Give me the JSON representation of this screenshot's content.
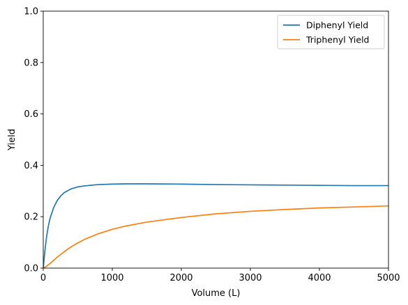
{
  "chart_data": {
    "type": "line",
    "title": "",
    "xlabel": "Volume (L)",
    "ylabel": "Yield",
    "xlim": [
      0,
      5000
    ],
    "ylim": [
      0,
      1.0
    ],
    "xticks": [
      0,
      1000,
      2000,
      3000,
      4000,
      5000
    ],
    "yticks": [
      0.0,
      0.2,
      0.4,
      0.6,
      0.8,
      1.0
    ],
    "xtick_labels": [
      "0",
      "1000",
      "2000",
      "3000",
      "4000",
      "5000"
    ],
    "ytick_labels": [
      "0.0",
      "0.2",
      "0.4",
      "0.6",
      "0.8",
      "1.0"
    ],
    "grid": false,
    "legend": "top-right",
    "series": [
      {
        "name": "Diphenyl Yield",
        "color": "#1f77b4",
        "x": [
          0,
          25,
          50,
          75,
          100,
          150,
          200,
          250,
          300,
          400,
          500,
          600,
          800,
          1000,
          1200,
          1500,
          2000,
          2500,
          3000,
          3500,
          4000,
          4500,
          5000
        ],
        "y": [
          0.0,
          0.07,
          0.125,
          0.165,
          0.195,
          0.235,
          0.262,
          0.28,
          0.293,
          0.308,
          0.316,
          0.32,
          0.325,
          0.327,
          0.328,
          0.328,
          0.327,
          0.325,
          0.324,
          0.323,
          0.322,
          0.321,
          0.321
        ]
      },
      {
        "name": "Triphenyl Yield",
        "color": "#ff7f0e",
        "x": [
          0,
          50,
          100,
          200,
          300,
          400,
          500,
          600,
          800,
          1000,
          1200,
          1500,
          2000,
          2500,
          3000,
          3500,
          4000,
          4500,
          5000
        ],
        "y": [
          0.0,
          0.008,
          0.018,
          0.042,
          0.063,
          0.082,
          0.098,
          0.112,
          0.134,
          0.151,
          0.164,
          0.179,
          0.197,
          0.211,
          0.221,
          0.228,
          0.234,
          0.238,
          0.242
        ]
      }
    ]
  }
}
